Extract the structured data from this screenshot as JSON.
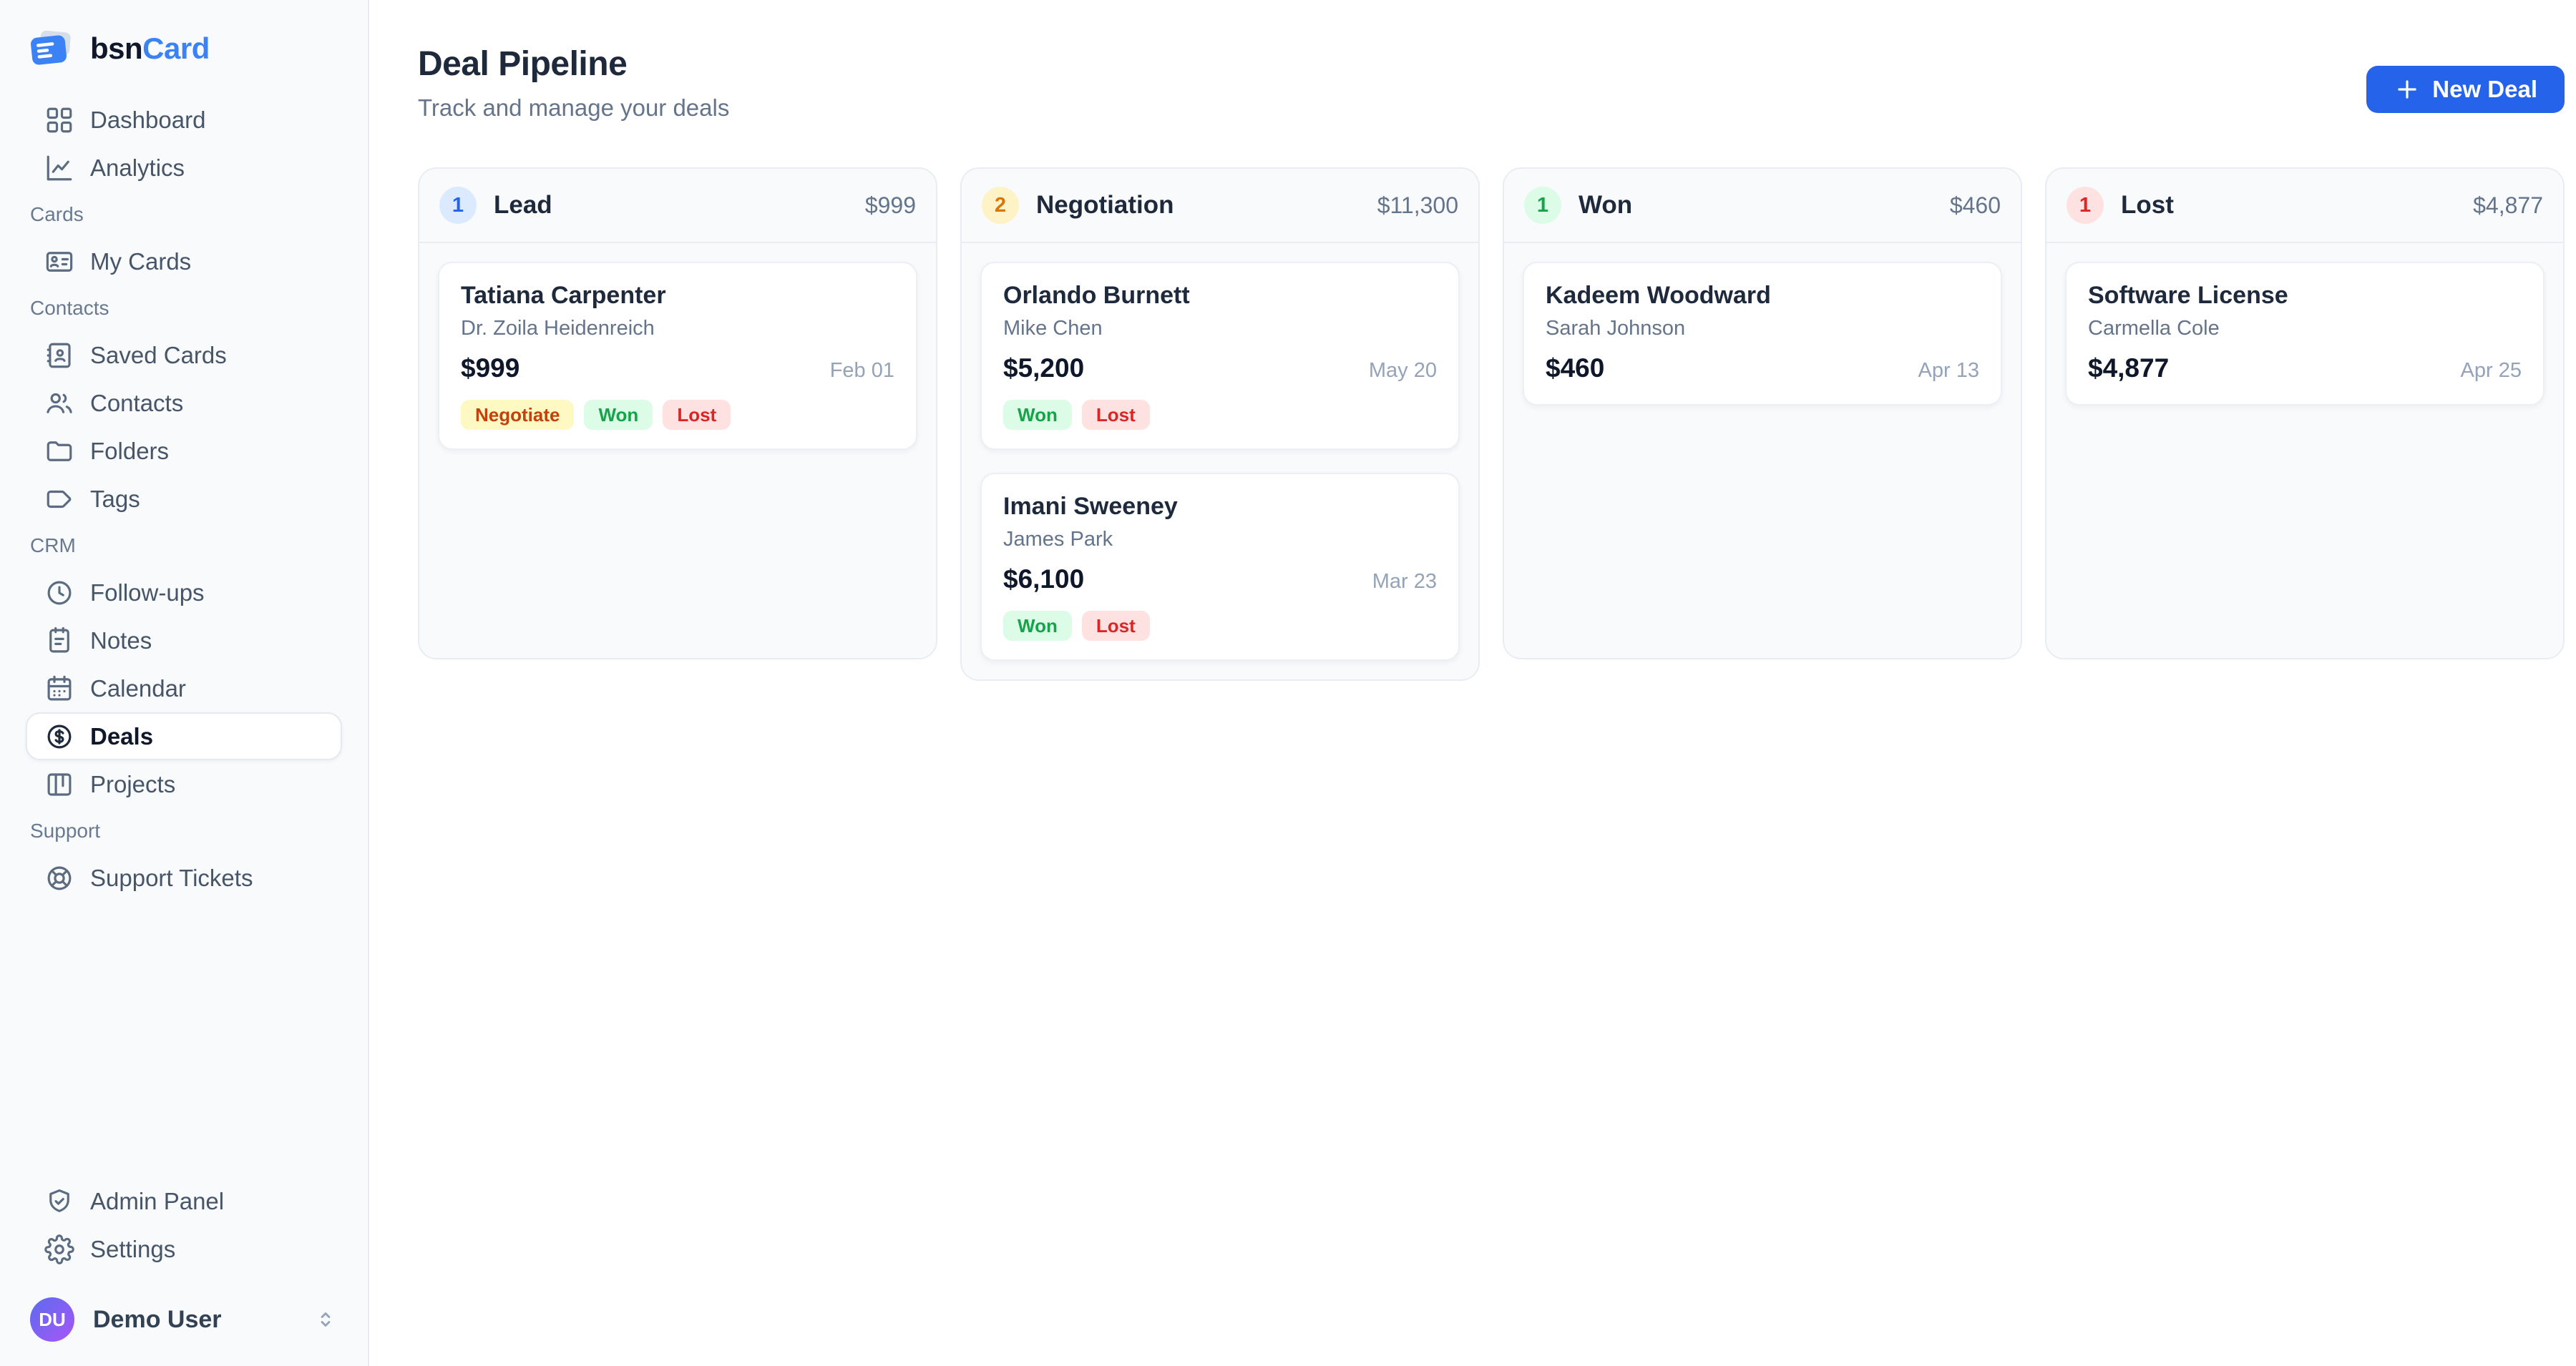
{
  "brand": {
    "prefix": "bsn",
    "suffix": "Card"
  },
  "colors": {
    "accent": "#2563eb",
    "sidebar_bg": "#f8fafc",
    "column_bg": "#f8fafc",
    "border": "#e9edf3"
  },
  "sidebar": {
    "sections": [
      {
        "label": "",
        "items": [
          {
            "label": "Dashboard",
            "icon": "dashboard-icon",
            "active": false
          },
          {
            "label": "Analytics",
            "icon": "analytics-icon",
            "active": false
          }
        ]
      },
      {
        "label": "Cards",
        "items": [
          {
            "label": "My Cards",
            "icon": "id-card-icon",
            "active": false
          }
        ]
      },
      {
        "label": "Contacts",
        "items": [
          {
            "label": "Saved Cards",
            "icon": "contact-book-icon",
            "active": false
          },
          {
            "label": "Contacts",
            "icon": "users-icon",
            "active": false
          },
          {
            "label": "Folders",
            "icon": "folder-icon",
            "active": false
          },
          {
            "label": "Tags",
            "icon": "tag-icon",
            "active": false
          }
        ]
      },
      {
        "label": "CRM",
        "items": [
          {
            "label": "Follow-ups",
            "icon": "clock-icon",
            "active": false
          },
          {
            "label": "Notes",
            "icon": "notes-icon",
            "active": false
          },
          {
            "label": "Calendar",
            "icon": "calendar-icon",
            "active": false
          },
          {
            "label": "Deals",
            "icon": "dollar-circle-icon",
            "active": true
          },
          {
            "label": "Projects",
            "icon": "kanban-icon",
            "active": false
          }
        ]
      },
      {
        "label": "Support",
        "items": [
          {
            "label": "Support Tickets",
            "icon": "life-buoy-icon",
            "active": false
          }
        ]
      }
    ],
    "footer_items": [
      {
        "label": "Admin Panel",
        "icon": "shield-icon",
        "active": false
      },
      {
        "label": "Settings",
        "icon": "gear-icon",
        "active": false
      }
    ],
    "user": {
      "initials": "DU",
      "name": "Demo User"
    }
  },
  "header": {
    "title": "Deal Pipeline",
    "subtitle": "Track and manage your deals",
    "new_deal_label": "New Deal"
  },
  "board": {
    "columns": [
      {
        "name": "Lead",
        "count": "1",
        "total": "$999",
        "badge": {
          "bg": "#dbeafe",
          "fg": "#2563eb"
        },
        "deals": [
          {
            "title": "Tatiana Carpenter",
            "contact": "Dr. Zoila Heidenreich",
            "amount": "$999",
            "date": "Feb 01",
            "tags": [
              {
                "label": "Negotiate",
                "bg": "#fef9c3",
                "fg": "#c2410c"
              },
              {
                "label": "Won",
                "bg": "#dcfce7",
                "fg": "#16a34a"
              },
              {
                "label": "Lost",
                "bg": "#fee2e2",
                "fg": "#dc2626"
              }
            ]
          }
        ]
      },
      {
        "name": "Negotiation",
        "count": "2",
        "total": "$11,300",
        "badge": {
          "bg": "#fef3c7",
          "fg": "#d97706"
        },
        "deals": [
          {
            "title": "Orlando Burnett",
            "contact": "Mike Chen",
            "amount": "$5,200",
            "date": "May 20",
            "tags": [
              {
                "label": "Won",
                "bg": "#dcfce7",
                "fg": "#16a34a"
              },
              {
                "label": "Lost",
                "bg": "#fee2e2",
                "fg": "#dc2626"
              }
            ]
          },
          {
            "title": "Imani Sweeney",
            "contact": "James Park",
            "amount": "$6,100",
            "date": "Mar 23",
            "tags": [
              {
                "label": "Won",
                "bg": "#dcfce7",
                "fg": "#16a34a"
              },
              {
                "label": "Lost",
                "bg": "#fee2e2",
                "fg": "#dc2626"
              }
            ]
          }
        ]
      },
      {
        "name": "Won",
        "count": "1",
        "total": "$460",
        "badge": {
          "bg": "#dcfce7",
          "fg": "#16a34a"
        },
        "deals": [
          {
            "title": "Kadeem Woodward",
            "contact": "Sarah Johnson",
            "amount": "$460",
            "date": "Apr 13",
            "tags": []
          }
        ]
      },
      {
        "name": "Lost",
        "count": "1",
        "total": "$4,877",
        "badge": {
          "bg": "#fee2e2",
          "fg": "#dc2626"
        },
        "deals": [
          {
            "title": "Software License",
            "contact": "Carmella Cole",
            "amount": "$4,877",
            "date": "Apr 25",
            "tags": []
          }
        ]
      }
    ]
  }
}
